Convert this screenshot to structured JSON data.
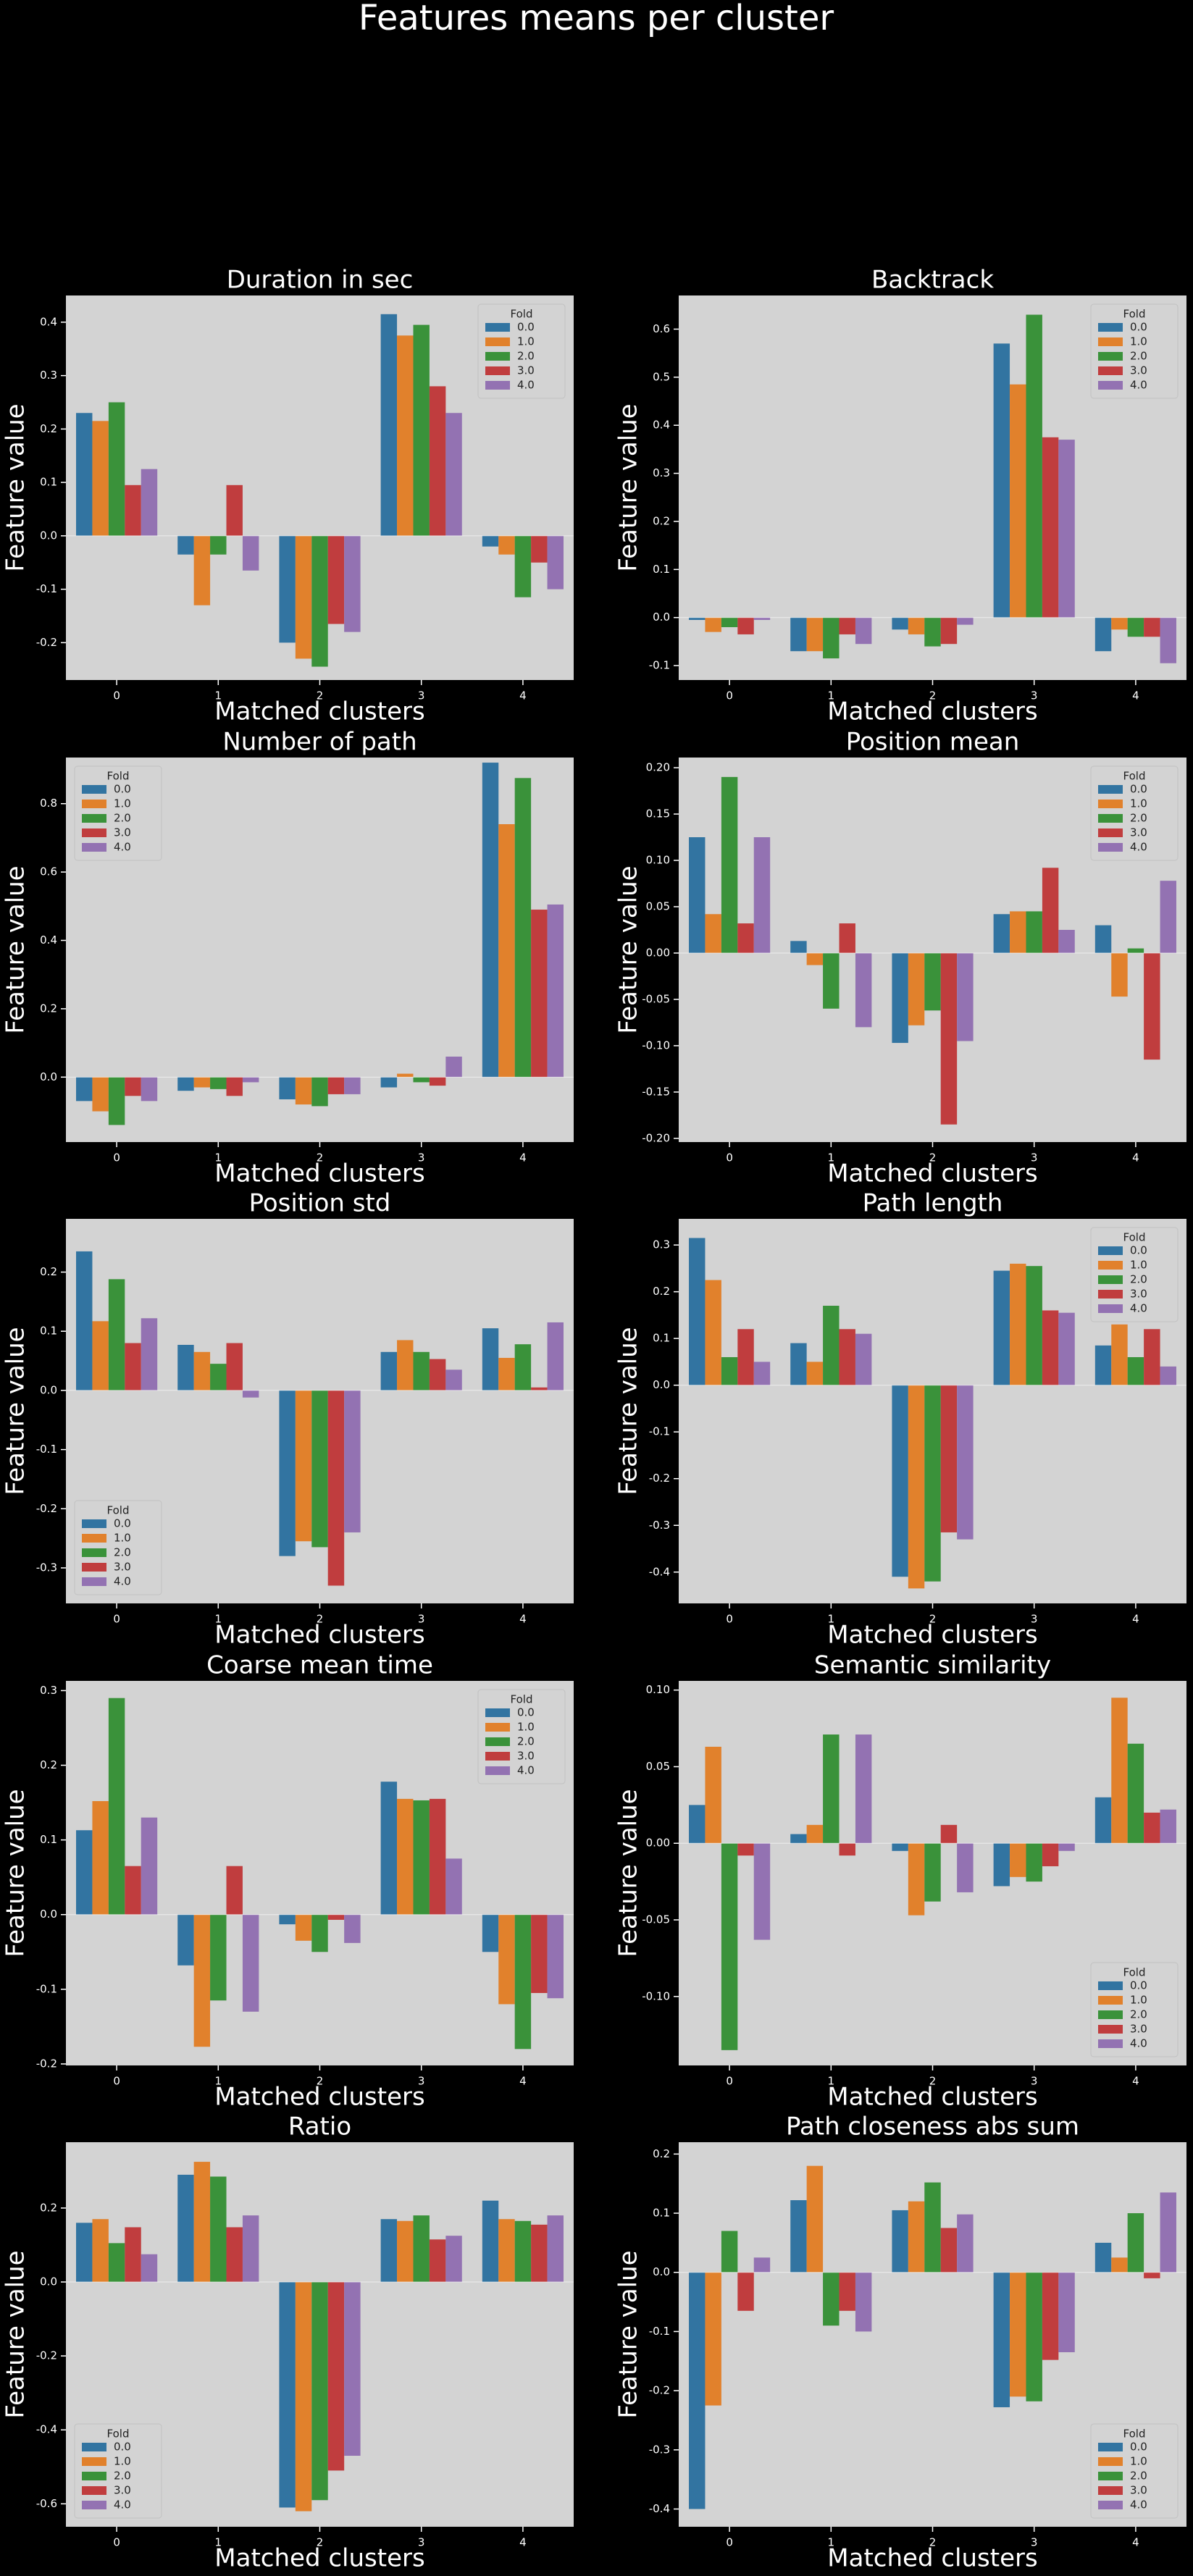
{
  "title": "Features means per cluster",
  "chart_data": [
    {
      "type": "bar",
      "title": "Duration in sec",
      "xlabel": "Matched clusters",
      "ylabel": "Feature value",
      "categories": [
        "0",
        "1",
        "2",
        "3",
        "4"
      ],
      "ylim": [
        -0.27,
        0.45
      ],
      "yticks": [
        -0.2,
        -0.1,
        {
          "value": 0,
          "label": "0.0"
        },
        0.1,
        0.2,
        0.3,
        0.4
      ],
      "legend": "upper right",
      "legend_title": "Fold",
      "series": [
        {
          "name": "0.0",
          "color": "#3274a1",
          "values": [
            0.23,
            -0.035,
            -0.2,
            0.415,
            -0.02
          ]
        },
        {
          "name": "1.0",
          "color": "#e1812c",
          "values": [
            0.215,
            -0.13,
            -0.23,
            0.375,
            -0.035
          ]
        },
        {
          "name": "2.0",
          "color": "#3a923a",
          "values": [
            0.25,
            -0.035,
            -0.245,
            0.395,
            -0.115
          ]
        },
        {
          "name": "3.0",
          "color": "#c03d3e",
          "values": [
            0.095,
            0.095,
            -0.165,
            0.28,
            -0.05
          ]
        },
        {
          "name": "4.0",
          "color": "#9372b2",
          "values": [
            0.125,
            -0.065,
            -0.18,
            0.23,
            -0.1
          ]
        }
      ]
    },
    {
      "type": "bar",
      "title": "Backtrack",
      "xlabel": "Matched clusters",
      "ylabel": "Feature value",
      "categories": [
        "0",
        "1",
        "2",
        "3",
        "4"
      ],
      "ylim": [
        -0.13,
        0.67
      ],
      "yticks": [
        -0.1,
        {
          "value": 0,
          "label": "0.0"
        },
        0.1,
        0.2,
        0.3,
        0.4,
        0.5,
        0.6
      ],
      "legend": "upper right",
      "legend_title": "Fold",
      "series": [
        {
          "name": "0.0",
          "color": "#3274a1",
          "values": [
            -0.005,
            -0.07,
            -0.025,
            0.57,
            -0.07
          ]
        },
        {
          "name": "1.0",
          "color": "#e1812c",
          "values": [
            -0.03,
            -0.07,
            -0.035,
            0.485,
            -0.025
          ]
        },
        {
          "name": "2.0",
          "color": "#3a923a",
          "values": [
            -0.02,
            -0.085,
            -0.06,
            0.63,
            -0.04
          ]
        },
        {
          "name": "3.0",
          "color": "#c03d3e",
          "values": [
            -0.035,
            -0.035,
            -0.055,
            0.375,
            -0.04
          ]
        },
        {
          "name": "4.0",
          "color": "#9372b2",
          "values": [
            -0.005,
            -0.055,
            -0.015,
            0.37,
            -0.095
          ]
        }
      ]
    },
    {
      "type": "bar",
      "title": "Number of path",
      "xlabel": "Matched clusters",
      "ylabel": "Feature value",
      "categories": [
        "0",
        "1",
        "2",
        "3",
        "4"
      ],
      "ylim": [
        -0.19,
        0.935
      ],
      "yticks": [
        {
          "value": 0,
          "label": "0.0"
        },
        0.2,
        0.4,
        0.6,
        0.8
      ],
      "legend": "upper left",
      "legend_title": "Fold",
      "series": [
        {
          "name": "0.0",
          "color": "#3274a1",
          "values": [
            -0.07,
            -0.04,
            -0.065,
            -0.03,
            0.92
          ]
        },
        {
          "name": "1.0",
          "color": "#e1812c",
          "values": [
            -0.1,
            -0.03,
            -0.08,
            0.01,
            0.74
          ]
        },
        {
          "name": "2.0",
          "color": "#3a923a",
          "values": [
            -0.14,
            -0.035,
            -0.085,
            -0.015,
            0.875
          ]
        },
        {
          "name": "3.0",
          "color": "#c03d3e",
          "values": [
            -0.055,
            -0.055,
            -0.05,
            -0.025,
            0.49
          ]
        },
        {
          "name": "4.0",
          "color": "#9372b2",
          "values": [
            -0.07,
            -0.015,
            -0.05,
            0.06,
            0.505
          ]
        }
      ]
    },
    {
      "type": "bar",
      "title": "Position mean",
      "xlabel": "Matched clusters",
      "ylabel": "Feature value",
      "categories": [
        "0",
        "1",
        "2",
        "3",
        "4"
      ],
      "ylim": [
        -0.204,
        0.211
      ],
      "yticks": [
        {
          "value": -0.2,
          "label": "-0.20"
        },
        -0.15,
        {
          "value": -0.1,
          "label": "-0.10"
        },
        -0.05,
        {
          "value": 0,
          "label": "0.00"
        },
        0.05,
        {
          "value": 0.1,
          "label": "0.10"
        },
        0.15,
        {
          "value": 0.2,
          "label": "0.20"
        }
      ],
      "legend": "upper right",
      "legend_title": "Fold",
      "series": [
        {
          "name": "0.0",
          "color": "#3274a1",
          "values": [
            0.125,
            0.013,
            -0.097,
            0.042,
            0.03
          ]
        },
        {
          "name": "1.0",
          "color": "#e1812c",
          "values": [
            0.042,
            -0.013,
            -0.078,
            0.045,
            -0.047
          ]
        },
        {
          "name": "2.0",
          "color": "#3a923a",
          "values": [
            0.19,
            -0.06,
            -0.062,
            0.045,
            0.005
          ]
        },
        {
          "name": "3.0",
          "color": "#c03d3e",
          "values": [
            0.032,
            0.032,
            -0.185,
            0.092,
            -0.115
          ]
        },
        {
          "name": "4.0",
          "color": "#9372b2",
          "values": [
            0.125,
            -0.08,
            -0.095,
            0.025,
            0.078
          ]
        }
      ]
    },
    {
      "type": "bar",
      "title": "Position std",
      "xlabel": "Matched clusters",
      "ylabel": "Feature value",
      "categories": [
        "0",
        "1",
        "2",
        "3",
        "4"
      ],
      "ylim": [
        -0.36,
        0.29
      ],
      "yticks": [
        -0.3,
        -0.2,
        -0.1,
        {
          "value": 0,
          "label": "0.0"
        },
        0.1,
        0.2
      ],
      "legend": "lower left",
      "legend_title": "Fold",
      "series": [
        {
          "name": "0.0",
          "color": "#3274a1",
          "values": [
            0.235,
            0.077,
            -0.28,
            0.065,
            0.105
          ]
        },
        {
          "name": "1.0",
          "color": "#e1812c",
          "values": [
            0.117,
            0.065,
            -0.255,
            0.085,
            0.055
          ]
        },
        {
          "name": "2.0",
          "color": "#3a923a",
          "values": [
            0.188,
            0.045,
            -0.265,
            0.065,
            0.078
          ]
        },
        {
          "name": "3.0",
          "color": "#c03d3e",
          "values": [
            0.08,
            0.08,
            -0.33,
            0.053,
            0.005
          ]
        },
        {
          "name": "4.0",
          "color": "#9372b2",
          "values": [
            0.122,
            -0.012,
            -0.24,
            0.035,
            0.115
          ]
        }
      ]
    },
    {
      "type": "bar",
      "title": "Path length",
      "xlabel": "Matched clusters",
      "ylabel": "Feature value",
      "categories": [
        "0",
        "1",
        "2",
        "3",
        "4"
      ],
      "ylim": [
        -0.467,
        0.356
      ],
      "yticks": [
        -0.4,
        -0.3,
        -0.2,
        -0.1,
        {
          "value": 0,
          "label": "0.0"
        },
        0.1,
        0.2,
        0.3
      ],
      "legend": "upper right",
      "legend_title": "Fold",
      "series": [
        {
          "name": "0.0",
          "color": "#3274a1",
          "values": [
            0.315,
            0.09,
            -0.41,
            0.245,
            0.085
          ]
        },
        {
          "name": "1.0",
          "color": "#e1812c",
          "values": [
            0.225,
            0.05,
            -0.435,
            0.26,
            0.13
          ]
        },
        {
          "name": "2.0",
          "color": "#3a923a",
          "values": [
            0.06,
            0.17,
            -0.42,
            0.255,
            0.06
          ]
        },
        {
          "name": "3.0",
          "color": "#c03d3e",
          "values": [
            0.12,
            0.12,
            -0.315,
            0.16,
            0.12
          ]
        },
        {
          "name": "4.0",
          "color": "#9372b2",
          "values": [
            0.05,
            0.11,
            -0.33,
            0.155,
            0.04
          ]
        }
      ]
    },
    {
      "type": "bar",
      "title": "Coarse mean time",
      "xlabel": "Matched clusters",
      "ylabel": "Feature value",
      "categories": [
        "0",
        "1",
        "2",
        "3",
        "4"
      ],
      "ylim": [
        -0.202,
        0.313
      ],
      "yticks": [
        -0.2,
        -0.1,
        {
          "value": 0,
          "label": "0.0"
        },
        0.1,
        0.2,
        0.3
      ],
      "legend": "upper right",
      "legend_title": "Fold",
      "series": [
        {
          "name": "0.0",
          "color": "#3274a1",
          "values": [
            0.113,
            -0.068,
            -0.013,
            0.178,
            -0.05
          ]
        },
        {
          "name": "1.0",
          "color": "#e1812c",
          "values": [
            0.152,
            -0.177,
            -0.035,
            0.155,
            -0.12
          ]
        },
        {
          "name": "2.0",
          "color": "#3a923a",
          "values": [
            0.29,
            -0.115,
            -0.05,
            0.153,
            -0.18
          ]
        },
        {
          "name": "3.0",
          "color": "#c03d3e",
          "values": [
            0.065,
            0.065,
            -0.007,
            0.155,
            -0.105
          ]
        },
        {
          "name": "4.0",
          "color": "#9372b2",
          "values": [
            0.13,
            -0.13,
            -0.038,
            0.075,
            -0.112
          ]
        }
      ]
    },
    {
      "type": "bar",
      "title": "Semantic similarity",
      "xlabel": "Matched clusters",
      "ylabel": "Feature value",
      "categories": [
        "0",
        "1",
        "2",
        "3",
        "4"
      ],
      "ylim": [
        -0.145,
        0.106
      ],
      "yticks": [
        {
          "value": -0.1,
          "label": "-0.10"
        },
        -0.05,
        {
          "value": 0,
          "label": "0.00"
        },
        0.05,
        {
          "value": 0.1,
          "label": "0.10"
        }
      ],
      "legend": "lower right",
      "legend_title": "Fold",
      "series": [
        {
          "name": "0.0",
          "color": "#3274a1",
          "values": [
            0.025,
            0.006,
            -0.005,
            -0.028,
            0.03
          ]
        },
        {
          "name": "1.0",
          "color": "#e1812c",
          "values": [
            0.063,
            0.012,
            -0.047,
            -0.022,
            0.095
          ]
        },
        {
          "name": "2.0",
          "color": "#3a923a",
          "values": [
            -0.135,
            0.071,
            -0.038,
            -0.025,
            0.065
          ]
        },
        {
          "name": "3.0",
          "color": "#c03d3e",
          "values": [
            -0.008,
            -0.008,
            0.012,
            -0.015,
            0.02
          ]
        },
        {
          "name": "4.0",
          "color": "#9372b2",
          "values": [
            -0.063,
            0.071,
            -0.032,
            -0.005,
            0.022
          ]
        }
      ]
    },
    {
      "type": "bar",
      "title": "Ratio",
      "xlabel": "Matched clusters",
      "ylabel": "Feature value",
      "categories": [
        "0",
        "1",
        "2",
        "3",
        "4"
      ],
      "ylim": [
        -0.662,
        0.378
      ],
      "yticks": [
        -0.6,
        -0.4,
        -0.2,
        {
          "value": 0,
          "label": "0.0"
        },
        0.2
      ],
      "legend": "lower left",
      "legend_title": "Fold",
      "series": [
        {
          "name": "0.0",
          "color": "#3274a1",
          "values": [
            0.16,
            0.29,
            -0.61,
            0.17,
            0.22
          ]
        },
        {
          "name": "1.0",
          "color": "#e1812c",
          "values": [
            0.17,
            0.325,
            -0.62,
            0.165,
            0.17
          ]
        },
        {
          "name": "2.0",
          "color": "#3a923a",
          "values": [
            0.105,
            0.285,
            -0.59,
            0.18,
            0.165
          ]
        },
        {
          "name": "3.0",
          "color": "#c03d3e",
          "values": [
            0.148,
            0.148,
            -0.51,
            0.115,
            0.155
          ]
        },
        {
          "name": "4.0",
          "color": "#9372b2",
          "values": [
            0.075,
            0.18,
            -0.47,
            0.125,
            0.18
          ]
        }
      ]
    },
    {
      "type": "bar",
      "title": "Path closeness abs sum",
      "xlabel": "Matched clusters",
      "ylabel": "Feature value",
      "categories": [
        "0",
        "1",
        "2",
        "3",
        "4"
      ],
      "ylim": [
        -0.43,
        0.22
      ],
      "yticks": [
        -0.4,
        -0.3,
        -0.2,
        -0.1,
        {
          "value": 0,
          "label": "0.0"
        },
        0.1,
        0.2
      ],
      "legend": "lower right",
      "legend_title": "Fold",
      "series": [
        {
          "name": "0.0",
          "color": "#3274a1",
          "values": [
            -0.4,
            0.122,
            0.105,
            -0.228,
            0.05
          ]
        },
        {
          "name": "1.0",
          "color": "#e1812c",
          "values": [
            -0.225,
            0.18,
            0.12,
            -0.21,
            0.025
          ]
        },
        {
          "name": "2.0",
          "color": "#3a923a",
          "values": [
            0.07,
            -0.09,
            0.152,
            -0.218,
            0.1
          ]
        },
        {
          "name": "3.0",
          "color": "#c03d3e",
          "values": [
            -0.065,
            -0.065,
            0.075,
            -0.148,
            -0.01
          ]
        },
        {
          "name": "4.0",
          "color": "#9372b2",
          "values": [
            0.025,
            -0.1,
            0.098,
            -0.135,
            0.135
          ]
        }
      ]
    }
  ]
}
